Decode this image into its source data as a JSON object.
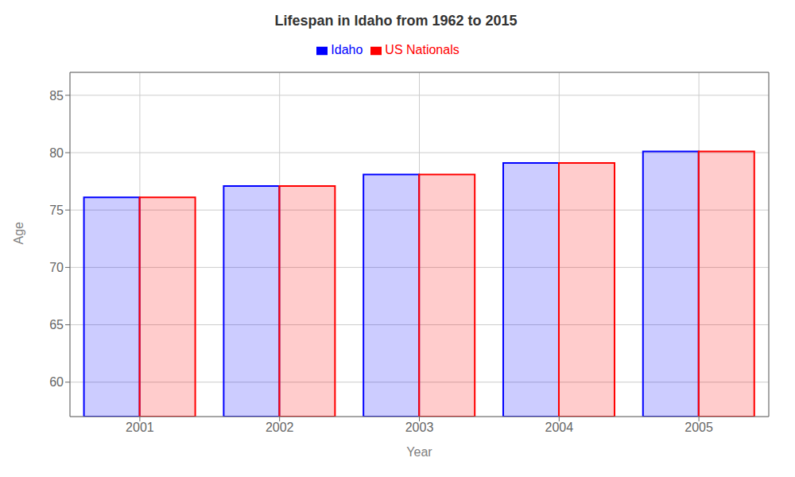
{
  "chart_data": {
    "type": "bar",
    "title": "Lifespan in Idaho from 1962 to 2015",
    "xlabel": "Year",
    "ylabel": "Age",
    "categories": [
      "2001",
      "2002",
      "2003",
      "2004",
      "2005"
    ],
    "series": [
      {
        "name": "Idaho",
        "color": "#0000ff",
        "values": [
          76.1,
          77.1,
          78.1,
          79.1,
          80.1
        ]
      },
      {
        "name": "US Nationals",
        "color": "#ff0000",
        "values": [
          76.1,
          77.1,
          78.1,
          79.1,
          80.1
        ]
      }
    ],
    "ylim": [
      57,
      87
    ],
    "yticks": [
      60,
      65,
      70,
      75,
      80,
      85
    ],
    "grid": true,
    "legend": "top"
  }
}
